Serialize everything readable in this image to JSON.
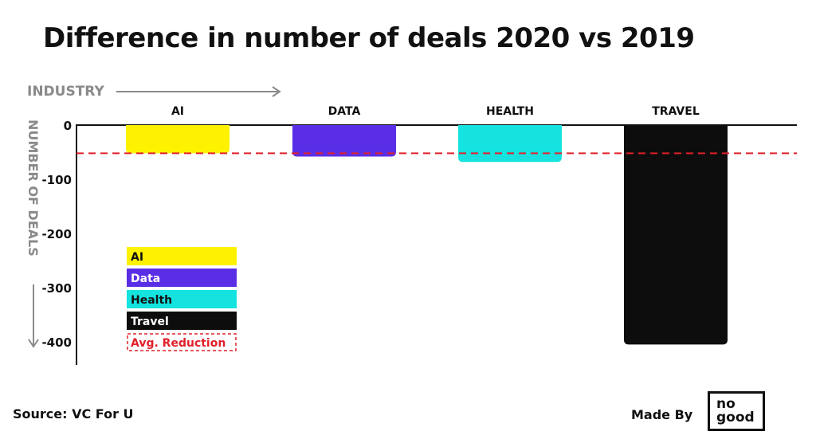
{
  "title": "Difference in number of deals 2020 vs 2019",
  "source": "Source: VC For U",
  "made_by": "Made By",
  "logo": {
    "line1": "no",
    "line2": "good"
  },
  "colors": {
    "AI": "#fff200",
    "DATA": "#5a2ee6",
    "HEALTH": "#14e3e0",
    "TRAVEL": "#0d0d0d",
    "avg_line": "#e0202a",
    "axis_title": "#8a8a8a"
  },
  "chart_data": {
    "type": "bar",
    "xlabel": "INDUSTRY",
    "ylabel": "NUMBER OF DEALS",
    "categories": [
      "AI",
      "DATA",
      "HEALTH",
      "TRAVEL"
    ],
    "values": [
      -52,
      -58,
      -68,
      -405
    ],
    "average_reduction": -52,
    "ylim": [
      -440,
      0
    ],
    "yticks": [
      0,
      -100,
      -200,
      -300,
      -400
    ],
    "ytick_labels": [
      "0",
      "-100",
      "-200",
      "-300",
      "-400"
    ],
    "legend_position": "bottom-left",
    "legend": [
      {
        "label": "AI",
        "color": "#fff200",
        "text_color": "#111111"
      },
      {
        "label": "Data",
        "color": "#5a2ee6",
        "text_color": "#ffffff"
      },
      {
        "label": "Health",
        "color": "#14e3e0",
        "text_color": "#111111"
      },
      {
        "label": "Travel",
        "color": "#0d0d0d",
        "text_color": "#ffffff"
      },
      {
        "label": "Avg. Reduction",
        "style": "dashed",
        "color": "#e0202a",
        "text_color": "#e0202a"
      }
    ]
  }
}
